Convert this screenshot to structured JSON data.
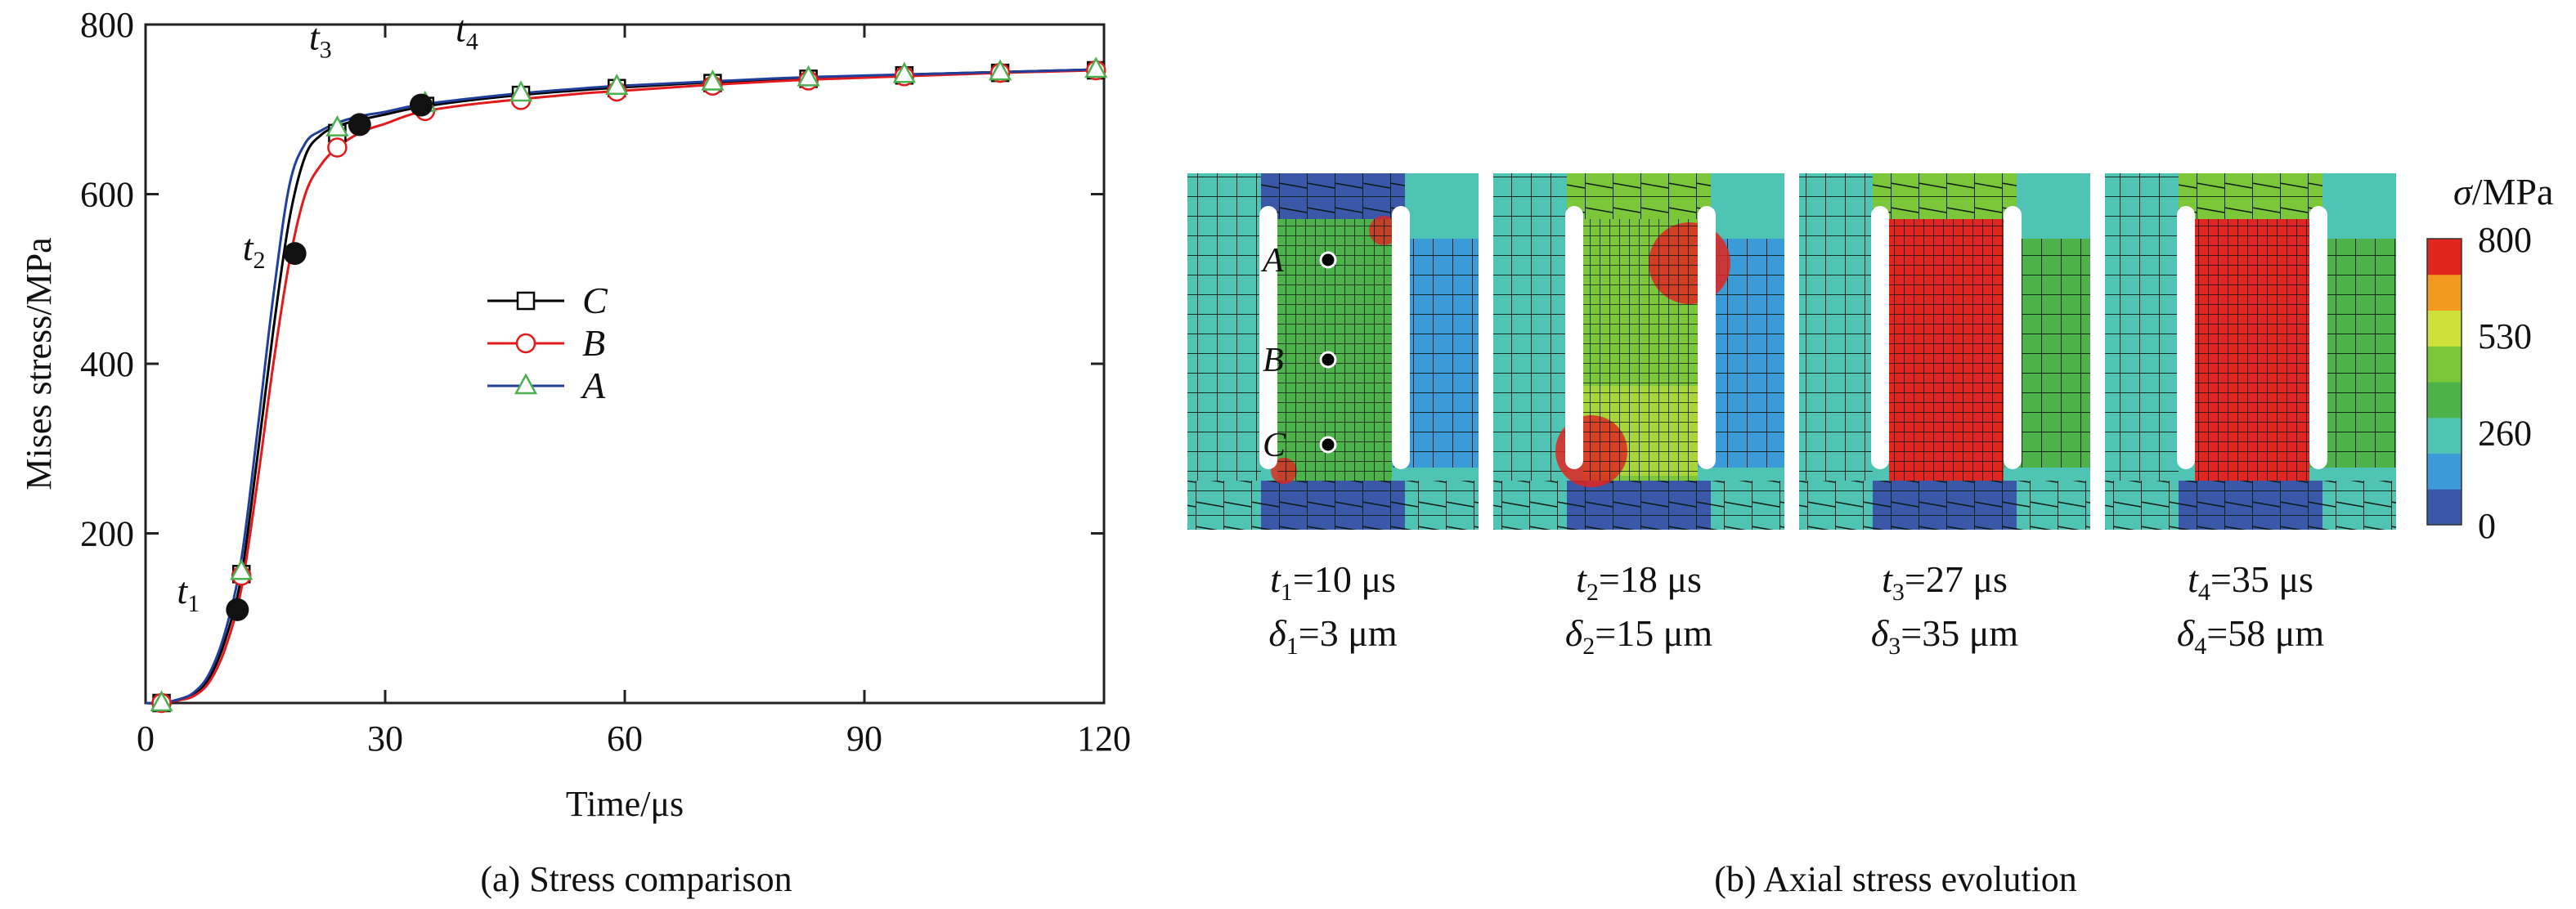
{
  "chart_data": [
    {
      "type": "line",
      "caption": "(a) Stress comparison",
      "xlabel": "Time/μs",
      "ylabel": "Mises stress/MPa",
      "xlim": [
        0,
        120
      ],
      "ylim": [
        0,
        800
      ],
      "xticks": [
        "0",
        "30",
        "60",
        "90",
        "120"
      ],
      "yticks": [
        "200",
        "400",
        "600",
        "800"
      ],
      "legend_position": "center",
      "series": [
        {
          "name": "C",
          "color": "#000000",
          "marker": "square",
          "x": [
            0,
            2,
            4,
            6,
            8,
            10,
            12,
            14,
            16,
            18,
            20,
            22,
            24,
            26,
            28,
            30,
            34,
            40,
            47,
            55,
            60,
            71,
            83,
            95,
            107,
            119
          ],
          "y": [
            0,
            0,
            3,
            10,
            30,
            75,
            150,
            290,
            440,
            570,
            645,
            670,
            680,
            686,
            690,
            694,
            702,
            710,
            717,
            723,
            726,
            732,
            737,
            741,
            744,
            747
          ],
          "marker_x": [
            2,
            12,
            24,
            35,
            47,
            59,
            71,
            83,
            95,
            107,
            119
          ],
          "marker_y": [
            0,
            152,
            672,
            704,
            717,
            725,
            731,
            736,
            740,
            743,
            746
          ]
        },
        {
          "name": "B",
          "color": "#e31a1c",
          "marker": "circle",
          "x": [
            0,
            2,
            4,
            6,
            8,
            10,
            12,
            14,
            16,
            18,
            20,
            22,
            24,
            26,
            28,
            30,
            34,
            40,
            47,
            55,
            60,
            71,
            83,
            95,
            107,
            119
          ],
          "y": [
            0,
            0,
            3,
            8,
            25,
            65,
            135,
            260,
            400,
            520,
            600,
            635,
            655,
            668,
            677,
            683,
            696,
            705,
            712,
            719,
            722,
            729,
            735,
            739,
            743,
            746
          ],
          "marker_x": [
            2,
            12,
            24,
            35,
            47,
            59,
            71,
            83,
            95,
            107,
            119
          ],
          "marker_y": [
            0,
            150,
            655,
            698,
            711,
            721,
            728,
            734,
            739,
            743,
            746
          ]
        },
        {
          "name": "A",
          "color": "#1f3f9a",
          "marker": "triangle",
          "marker_color": "#4caf50",
          "x": [
            0,
            2,
            4,
            6,
            8,
            10,
            12,
            14,
            16,
            18,
            20,
            22,
            24,
            26,
            28,
            30,
            34,
            40,
            47,
            55,
            60,
            71,
            83,
            95,
            107,
            119
          ],
          "y": [
            0,
            0,
            4,
            12,
            35,
            85,
            170,
            320,
            480,
            610,
            660,
            675,
            684,
            690,
            694,
            697,
            705,
            712,
            719,
            725,
            728,
            733,
            738,
            741,
            744,
            747
          ],
          "marker_x": [
            2,
            12,
            24,
            35,
            47,
            59,
            71,
            83,
            95,
            107,
            119
          ],
          "marker_y": [
            0,
            155,
            678,
            707,
            719,
            727,
            732,
            737,
            741,
            744,
            747
          ]
        }
      ],
      "annotations": [
        {
          "label": "t",
          "sub": "1",
          "x": 11.5,
          "y": 110
        },
        {
          "label": "t",
          "sub": "2",
          "x": 18.7,
          "y": 530
        },
        {
          "label": "t",
          "sub": "3",
          "x": 26.8,
          "y": 682
        },
        {
          "label": "t",
          "sub": "4",
          "x": 34.5,
          "y": 705
        }
      ]
    },
    {
      "type": "heatmap",
      "caption": "(b) Axial stress evolution",
      "colorbar": {
        "title_symbol": "σ",
        "title_unit": "/MPa",
        "ticks": [
          "800",
          "530",
          "260",
          "0"
        ],
        "tick_values": [
          800,
          530,
          260,
          0
        ],
        "range": [
          0,
          800
        ],
        "colors": [
          "#3a57a8",
          "#3b9bd8",
          "#4fc4b4",
          "#4db24a",
          "#7cc63a",
          "#cfe03a",
          "#f39a1e",
          "#e0261e"
        ]
      },
      "points": [
        "A",
        "B",
        "C"
      ],
      "panels": [
        {
          "t_sym": "t",
          "t_sub": "1",
          "t_text": "=10 μs",
          "d_sym": "δ",
          "d_sub": "1",
          "d_text": "=3 μm",
          "stress": 0.1
        },
        {
          "t_sym": "t",
          "t_sub": "2",
          "t_text": "=18 μs",
          "d_sym": "δ",
          "d_sub": "2",
          "d_text": "=15 μm",
          "stress": 0.5
        },
        {
          "t_sym": "t",
          "t_sub": "3",
          "t_text": "=27 μs",
          "d_sym": "δ",
          "d_sub": "3",
          "d_text": "=35 μm",
          "stress": 1.0
        },
        {
          "t_sym": "t",
          "t_sub": "4",
          "t_text": "=35 μs",
          "d_sym": "δ",
          "d_sub": "4",
          "d_text": "=58 μm",
          "stress": 1.0
        }
      ]
    }
  ]
}
